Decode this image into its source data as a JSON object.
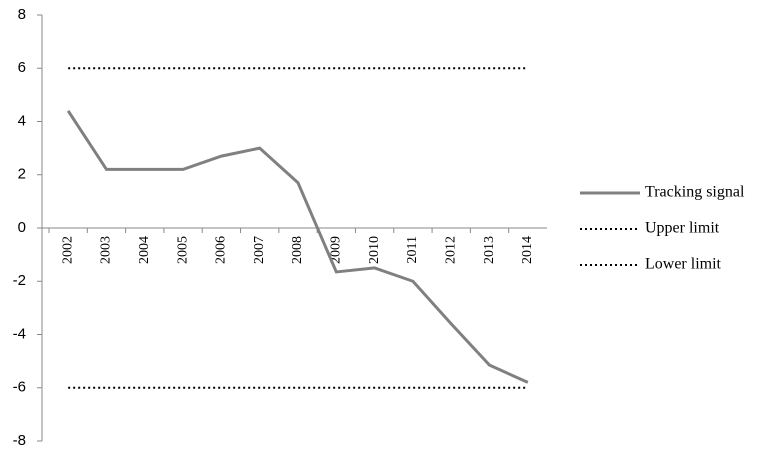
{
  "chart_data": {
    "type": "line",
    "categories": [
      "2002",
      "2003",
      "2004",
      "2005",
      "2006",
      "2007",
      "2008",
      "2009",
      "2010",
      "2011",
      "2012",
      "2013",
      "2014"
    ],
    "series": [
      {
        "name": "Tracking signal",
        "color": "#808080",
        "style": "solid",
        "values": [
          4.4,
          2.2,
          2.2,
          2.2,
          2.7,
          3.0,
          1.7,
          -1.65,
          -1.5,
          -2.0,
          -3.6,
          -5.15,
          -5.8
        ]
      },
      {
        "name": "Upper limit",
        "color": "#000000",
        "style": "dotted",
        "values": [
          6,
          6,
          6,
          6,
          6,
          6,
          6,
          6,
          6,
          6,
          6,
          6,
          6
        ]
      },
      {
        "name": "Lower limit",
        "color": "#000000",
        "style": "dotted",
        "values": [
          -6,
          -6,
          -6,
          -6,
          -6,
          -6,
          -6,
          -6,
          -6,
          -6,
          -6,
          -6,
          -6
        ]
      }
    ],
    "ylim": [
      -8,
      8
    ],
    "yticks": [
      -8,
      -6,
      -4,
      -2,
      0,
      2,
      4,
      6,
      8
    ],
    "grid": false,
    "legend": "right"
  }
}
